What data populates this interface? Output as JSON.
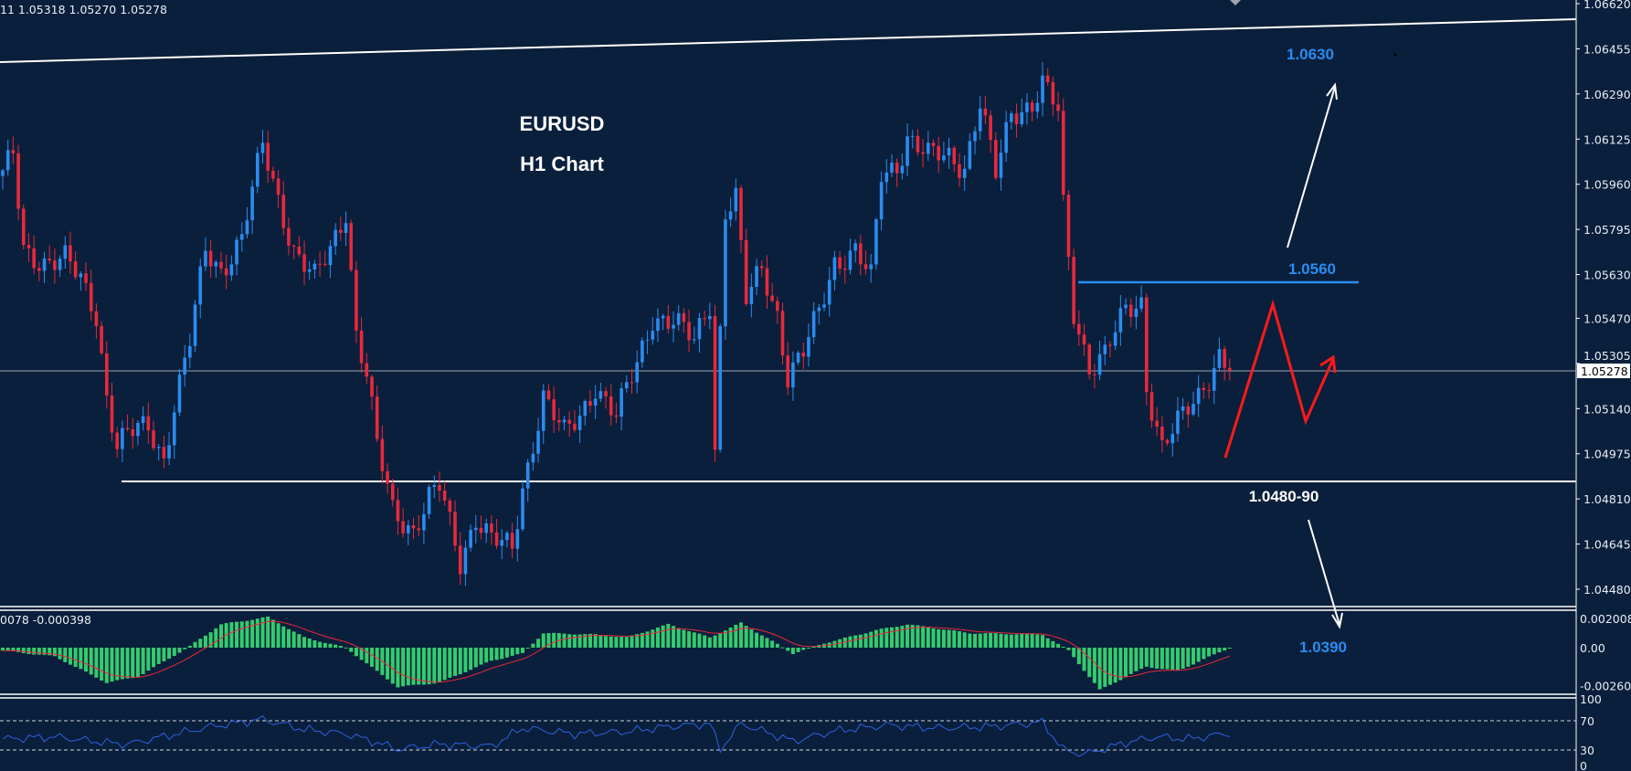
{
  "header": {
    "ohlc_text": "11 1.05318 1.05270 1.05278",
    "macd_text": "0078 -0.000398"
  },
  "colors": {
    "background": "#0a1f3b",
    "bull": "#2a8cf0",
    "bear": "#e8293b",
    "macd_hist": "#33cc6e",
    "macd_signal": "#e8293b",
    "rsi": "#3060e0",
    "annotation_blue": "#2a8cf0",
    "zigzag": "#ff1a1a"
  },
  "chart_data": {
    "type": "candlestick",
    "symbol_title": "EURUSD",
    "timeframe_title": "H1 Chart",
    "price_axis": {
      "ylim": [
        1.0448,
        1.0662
      ],
      "ticks": [
        "1.06620",
        "1.06455",
        "1.06290",
        "1.06125",
        "1.05960",
        "1.05795",
        "1.05630",
        "1.05470",
        "1.05305",
        "1.05140",
        "1.04975",
        "1.04810",
        "1.04645",
        "1.04480"
      ]
    },
    "current_price": "1.05278",
    "bars": 237,
    "close_path": [
      [
        0,
        1.0599
      ],
      [
        2,
        1.0606
      ],
      [
        4,
        1.0572
      ],
      [
        8,
        1.0568
      ],
      [
        12,
        1.0568
      ],
      [
        15,
        1.0561
      ],
      [
        18,
        1.0549
      ],
      [
        20,
        1.0519
      ],
      [
        22,
        1.05
      ],
      [
        24,
        1.0504
      ],
      [
        28,
        1.0508
      ],
      [
        31,
        1.0496
      ],
      [
        33,
        1.0515
      ],
      [
        36,
        1.0538
      ],
      [
        39,
        1.0572
      ],
      [
        42,
        1.0565
      ],
      [
        46,
        1.0576
      ],
      [
        50,
        1.061
      ],
      [
        53,
        1.0591
      ],
      [
        56,
        1.0572
      ],
      [
        60,
        1.0561
      ],
      [
        63,
        1.0572
      ],
      [
        66,
        1.0587
      ],
      [
        68,
        1.0542
      ],
      [
        70,
        1.0526
      ],
      [
        72,
        1.05
      ],
      [
        75,
        1.0477
      ],
      [
        79,
        1.047
      ],
      [
        82,
        1.0481
      ],
      [
        84,
        1.0485
      ],
      [
        88,
        1.0458
      ],
      [
        91,
        1.0475
      ],
      [
        94,
        1.0466
      ],
      [
        98,
        1.0462
      ],
      [
        100,
        1.0485
      ],
      [
        104,
        1.0519
      ],
      [
        108,
        1.0504
      ],
      [
        111,
        1.0511
      ],
      [
        114,
        1.0523
      ],
      [
        118,
        1.0511
      ],
      [
        122,
        1.053
      ],
      [
        125,
        1.0548
      ],
      [
        129,
        1.0546
      ],
      [
        133,
        1.0538
      ],
      [
        136,
        1.0553
      ],
      [
        137,
        1.05
      ],
      [
        139,
        1.0587
      ],
      [
        141,
        1.0591
      ],
      [
        143,
        1.0553
      ],
      [
        146,
        1.0565
      ],
      [
        149,
        1.0549
      ],
      [
        151,
        1.0526
      ],
      [
        154,
        1.0534
      ],
      [
        157,
        1.0549
      ],
      [
        160,
        1.0568
      ],
      [
        164,
        1.0572
      ],
      [
        167,
        1.0561
      ],
      [
        169,
        1.0599
      ],
      [
        172,
        1.0603
      ],
      [
        174,
        1.0614
      ],
      [
        178,
        1.0606
      ],
      [
        182,
        1.0606
      ],
      [
        185,
        1.0603
      ],
      [
        188,
        1.0626
      ],
      [
        191,
        1.0599
      ],
      [
        194,
        1.0622
      ],
      [
        198,
        1.0626
      ],
      [
        200,
        1.0633
      ],
      [
        203,
        1.0622
      ],
      [
        204,
        1.0587
      ],
      [
        206,
        1.0549
      ],
      [
        209,
        1.053
      ],
      [
        212,
        1.0534
      ],
      [
        216,
        1.0549
      ],
      [
        219,
        1.0553
      ],
      [
        220,
        1.0523
      ],
      [
        223,
        1.05
      ],
      [
        226,
        1.0508
      ],
      [
        230,
        1.0519
      ],
      [
        234,
        1.0534
      ],
      [
        236,
        1.05278
      ]
    ],
    "macd": {
      "axis_ticks": [
        "0.002008",
        "0.00",
        "-0.002603"
      ],
      "ylim": [
        -0.002603,
        0.002008
      ],
      "histogram_path": [
        [
          0,
          -0.0002
        ],
        [
          10,
          -0.0006
        ],
        [
          20,
          -0.0024
        ],
        [
          26,
          -0.002
        ],
        [
          36,
          0.0001
        ],
        [
          42,
          0.0016
        ],
        [
          51,
          0.0021
        ],
        [
          58,
          0.0007
        ],
        [
          66,
          0.0
        ],
        [
          76,
          -0.0027
        ],
        [
          84,
          -0.0024
        ],
        [
          94,
          -0.0009
        ],
        [
          100,
          -0.0004
        ],
        [
          104,
          0.001
        ],
        [
          114,
          0.0009
        ],
        [
          120,
          0.0007
        ],
        [
          128,
          0.0016
        ],
        [
          136,
          0.0007
        ],
        [
          142,
          0.0017
        ],
        [
          152,
          -0.0004
        ],
        [
          158,
          0.0003
        ],
        [
          168,
          0.0012
        ],
        [
          174,
          0.0016
        ],
        [
          186,
          0.001
        ],
        [
          200,
          0.0009
        ],
        [
          205,
          -0.0002
        ],
        [
          211,
          -0.0029
        ],
        [
          220,
          -0.0013
        ],
        [
          226,
          -0.0016
        ],
        [
          236,
          0.0
        ]
      ]
    },
    "rsi": {
      "axis_ticks": [
        "100",
        "70",
        "30",
        "0"
      ],
      "levels": [
        70,
        30
      ],
      "ylim": [
        0,
        100
      ],
      "path": [
        [
          0,
          45
        ],
        [
          10,
          48
        ],
        [
          20,
          40
        ],
        [
          24,
          38
        ],
        [
          32,
          50
        ],
        [
          40,
          62
        ],
        [
          50,
          72
        ],
        [
          58,
          58
        ],
        [
          66,
          52
        ],
        [
          72,
          40
        ],
        [
          76,
          31
        ],
        [
          84,
          38
        ],
        [
          94,
          35
        ],
        [
          100,
          60
        ],
        [
          110,
          52
        ],
        [
          120,
          55
        ],
        [
          128,
          62
        ],
        [
          136,
          66
        ],
        [
          138,
          31
        ],
        [
          142,
          66
        ],
        [
          152,
          42
        ],
        [
          160,
          56
        ],
        [
          170,
          64
        ],
        [
          180,
          60
        ],
        [
          190,
          62
        ],
        [
          200,
          68
        ],
        [
          204,
          30
        ],
        [
          208,
          24
        ],
        [
          216,
          40
        ],
        [
          222,
          48
        ],
        [
          228,
          45
        ],
        [
          236,
          53
        ]
      ]
    },
    "annotations": {
      "target_up": "1.0630",
      "resistance": "1.0560",
      "support": "1.0480-90",
      "target_down": "1.0390"
    }
  }
}
